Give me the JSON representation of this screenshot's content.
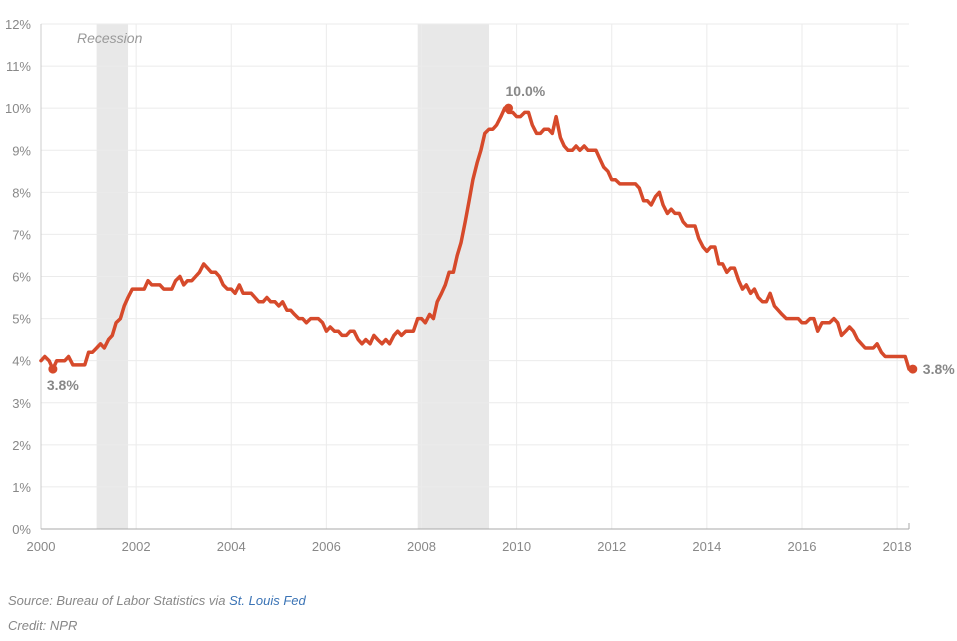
{
  "chart_data": {
    "type": "line",
    "title": "",
    "xlabel": "",
    "ylabel": "",
    "xlim": [
      2000,
      2018.25
    ],
    "ylim": [
      0,
      12
    ],
    "y_ticks": [
      0,
      1,
      2,
      3,
      4,
      5,
      6,
      7,
      8,
      9,
      10,
      11,
      12
    ],
    "y_tick_labels": [
      "0%",
      "1%",
      "2%",
      "3%",
      "4%",
      "5%",
      "6%",
      "7%",
      "8%",
      "9%",
      "10%",
      "11%",
      "12%"
    ],
    "x_ticks": [
      2000,
      2002,
      2004,
      2006,
      2008,
      2010,
      2012,
      2014,
      2016,
      2018
    ],
    "x_tick_labels": [
      "2000",
      "2002",
      "2004",
      "2006",
      "2008",
      "2010",
      "2012",
      "2014",
      "2016",
      "2018"
    ],
    "grid": true,
    "line_color": "#d64a2b",
    "recession_color": "#e8e8e8",
    "recessions": [
      {
        "start": 2001.17,
        "end": 2001.83
      },
      {
        "start": 2007.92,
        "end": 2009.42
      }
    ],
    "recession_label": "Recession",
    "series": [
      {
        "x": [
          2000.0,
          2000.08,
          2000.17,
          2000.25,
          2000.33,
          2000.42,
          2000.5,
          2000.58,
          2000.67,
          2000.75,
          2000.83,
          2000.92,
          2001.0,
          2001.08,
          2001.17,
          2001.25,
          2001.33,
          2001.42,
          2001.5,
          2001.58,
          2001.67,
          2001.75,
          2001.83,
          2001.92,
          2002.0,
          2002.08,
          2002.17,
          2002.25,
          2002.33,
          2002.42,
          2002.5,
          2002.58,
          2002.67,
          2002.75,
          2002.83,
          2002.92,
          2003.0,
          2003.08,
          2003.17,
          2003.25,
          2003.33,
          2003.42,
          2003.5,
          2003.58,
          2003.67,
          2003.75,
          2003.83,
          2003.92,
          2004.0,
          2004.08,
          2004.17,
          2004.25,
          2004.33,
          2004.42,
          2004.5,
          2004.58,
          2004.67,
          2004.75,
          2004.83,
          2004.92,
          2005.0,
          2005.08,
          2005.17,
          2005.25,
          2005.33,
          2005.42,
          2005.5,
          2005.58,
          2005.67,
          2005.75,
          2005.83,
          2005.92,
          2006.0,
          2006.08,
          2006.17,
          2006.25,
          2006.33,
          2006.42,
          2006.5,
          2006.58,
          2006.67,
          2006.75,
          2006.83,
          2006.92,
          2007.0,
          2007.08,
          2007.17,
          2007.25,
          2007.33,
          2007.42,
          2007.5,
          2007.58,
          2007.67,
          2007.75,
          2007.83,
          2007.92,
          2008.0,
          2008.08,
          2008.17,
          2008.25,
          2008.33,
          2008.42,
          2008.5,
          2008.58,
          2008.67,
          2008.75,
          2008.83,
          2008.92,
          2009.0,
          2009.08,
          2009.17,
          2009.25,
          2009.33,
          2009.42,
          2009.5,
          2009.58,
          2009.67,
          2009.75,
          2009.83,
          2009.92,
          2010.0,
          2010.08,
          2010.17,
          2010.25,
          2010.33,
          2010.42,
          2010.5,
          2010.58,
          2010.67,
          2010.75,
          2010.83,
          2010.92,
          2011.0,
          2011.08,
          2011.17,
          2011.25,
          2011.33,
          2011.42,
          2011.5,
          2011.58,
          2011.67,
          2011.75,
          2011.83,
          2011.92,
          2012.0,
          2012.08,
          2012.17,
          2012.25,
          2012.33,
          2012.42,
          2012.5,
          2012.58,
          2012.67,
          2012.75,
          2012.83,
          2012.92,
          2013.0,
          2013.08,
          2013.17,
          2013.25,
          2013.33,
          2013.42,
          2013.5,
          2013.58,
          2013.67,
          2013.75,
          2013.83,
          2013.92,
          2014.0,
          2014.08,
          2014.17,
          2014.25,
          2014.33,
          2014.42,
          2014.5,
          2014.58,
          2014.67,
          2014.75,
          2014.83,
          2014.92,
          2015.0,
          2015.08,
          2015.17,
          2015.25,
          2015.33,
          2015.42,
          2015.5,
          2015.58,
          2015.67,
          2015.75,
          2015.83,
          2015.92,
          2016.0,
          2016.08,
          2016.17,
          2016.25,
          2016.33,
          2016.42,
          2016.5,
          2016.58,
          2016.67,
          2016.75,
          2016.83,
          2016.92,
          2017.0,
          2017.08,
          2017.17,
          2017.25,
          2017.33,
          2017.42,
          2017.5,
          2017.58,
          2017.67,
          2017.75,
          2017.83,
          2017.92,
          2018.0,
          2018.08,
          2018.17,
          2018.25
        ],
        "y": [
          4.0,
          4.1,
          4.0,
          3.8,
          4.0,
          4.0,
          4.0,
          4.1,
          3.9,
          3.9,
          3.9,
          3.9,
          4.2,
          4.2,
          4.3,
          4.4,
          4.3,
          4.5,
          4.6,
          4.9,
          5.0,
          5.3,
          5.5,
          5.7,
          5.7,
          5.7,
          5.7,
          5.9,
          5.8,
          5.8,
          5.8,
          5.7,
          5.7,
          5.7,
          5.9,
          6.0,
          5.8,
          5.9,
          5.9,
          6.0,
          6.1,
          6.3,
          6.2,
          6.1,
          6.1,
          6.0,
          5.8,
          5.7,
          5.7,
          5.6,
          5.8,
          5.6,
          5.6,
          5.6,
          5.5,
          5.4,
          5.4,
          5.5,
          5.4,
          5.4,
          5.3,
          5.4,
          5.2,
          5.2,
          5.1,
          5.0,
          5.0,
          4.9,
          5.0,
          5.0,
          5.0,
          4.9,
          4.7,
          4.8,
          4.7,
          4.7,
          4.6,
          4.6,
          4.7,
          4.7,
          4.5,
          4.4,
          4.5,
          4.4,
          4.6,
          4.5,
          4.4,
          4.5,
          4.4,
          4.6,
          4.7,
          4.6,
          4.7,
          4.7,
          4.7,
          5.0,
          5.0,
          4.9,
          5.1,
          5.0,
          5.4,
          5.6,
          5.8,
          6.1,
          6.1,
          6.5,
          6.8,
          7.3,
          7.8,
          8.3,
          8.7,
          9.0,
          9.4,
          9.5,
          9.5,
          9.6,
          9.8,
          10.0,
          9.9,
          9.9,
          9.8,
          9.8,
          9.9,
          9.9,
          9.6,
          9.4,
          9.4,
          9.5,
          9.5,
          9.4,
          9.8,
          9.3,
          9.1,
          9.0,
          9.0,
          9.1,
          9.0,
          9.1,
          9.0,
          9.0,
          9.0,
          8.8,
          8.6,
          8.5,
          8.3,
          8.3,
          8.2,
          8.2,
          8.2,
          8.2,
          8.2,
          8.1,
          7.8,
          7.8,
          7.7,
          7.9,
          8.0,
          7.7,
          7.5,
          7.6,
          7.5,
          7.5,
          7.3,
          7.2,
          7.2,
          7.2,
          6.9,
          6.7,
          6.6,
          6.7,
          6.7,
          6.3,
          6.3,
          6.1,
          6.2,
          6.2,
          5.9,
          5.7,
          5.8,
          5.6,
          5.7,
          5.5,
          5.4,
          5.4,
          5.6,
          5.3,
          5.2,
          5.1,
          5.0,
          5.0,
          5.0,
          5.0,
          4.9,
          4.9,
          5.0,
          5.0,
          4.7,
          4.9,
          4.9,
          4.9,
          5.0,
          4.9,
          4.6,
          4.7,
          4.8,
          4.7,
          4.5,
          4.4,
          4.3,
          4.3,
          4.3,
          4.4,
          4.2,
          4.1,
          4.1,
          4.1,
          4.1,
          4.1,
          4.1,
          3.8
        ]
      }
    ],
    "annotations": [
      {
        "x": 2000.25,
        "y": 3.8,
        "label": "3.8%"
      },
      {
        "x": 2009.83,
        "y": 10.0,
        "label": "10.0%"
      },
      {
        "x": 2018.33,
        "y": 3.8,
        "label": "3.8%"
      }
    ]
  },
  "footer": {
    "source_prefix": "Source: Bureau of Labor Statistics via ",
    "source_link": "St. Louis Fed",
    "credit": "Credit: NPR"
  }
}
